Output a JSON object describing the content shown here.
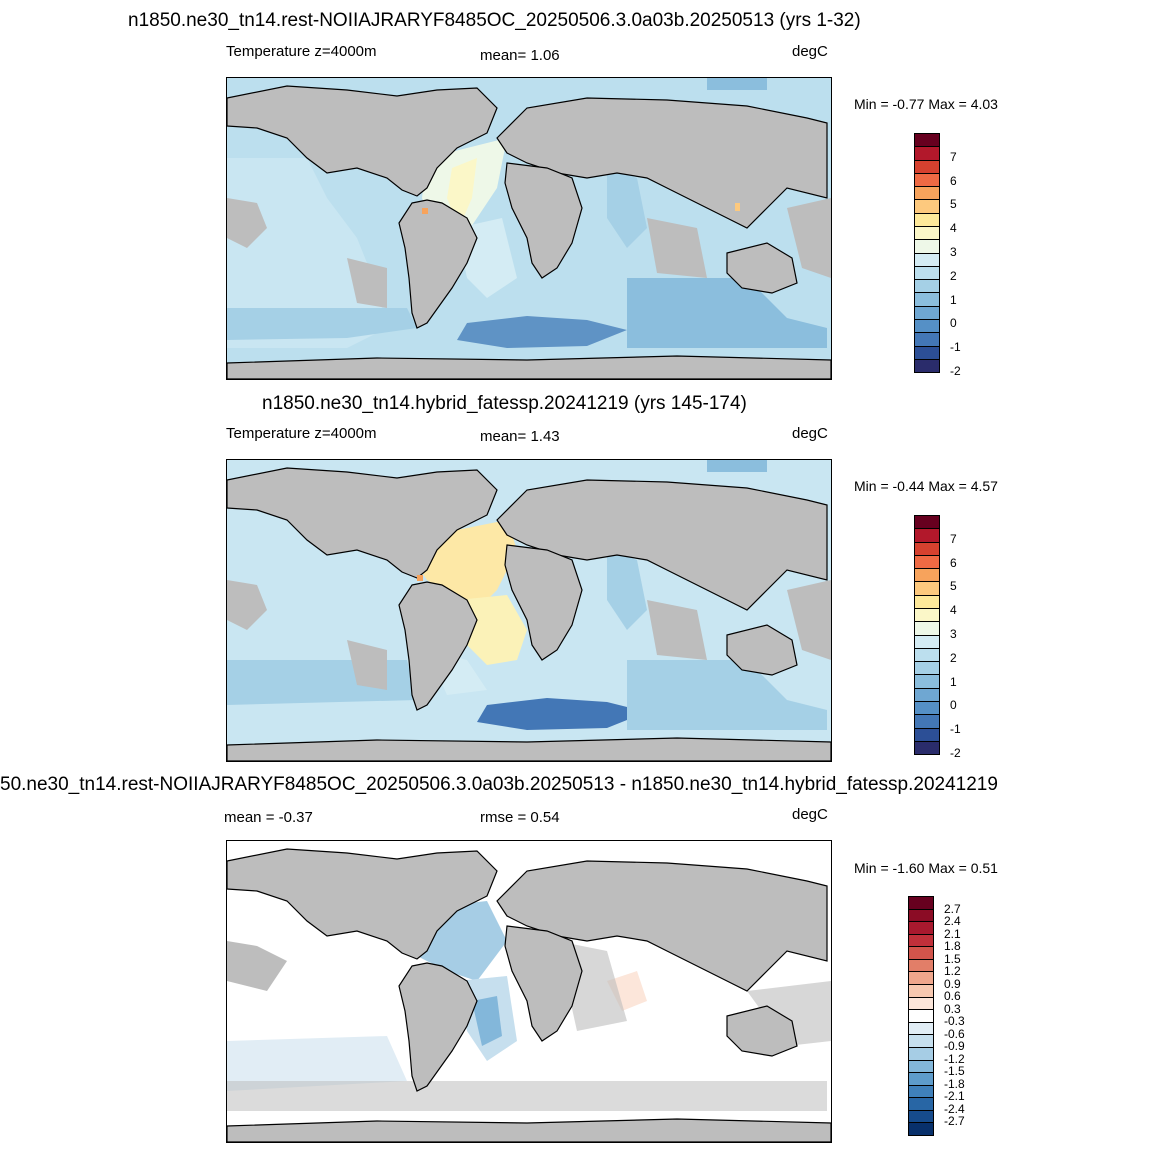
{
  "panels": [
    {
      "title": "n1850.ne30_tn14.rest-NOIIAJRARYF8485OC_20250506.3.0a03b.20250513 (yrs 1-32)",
      "left_label": "Temperature z=4000m",
      "center_label": "mean=   1.06",
      "right_label": "degC",
      "minmax": "Min =  -0.77 Max =   4.03"
    },
    {
      "title": "n1850.ne30_tn14.hybrid_fatessp.20241219 (yrs 145-174)",
      "left_label": "Temperature z=4000m",
      "center_label": "mean=   1.43",
      "right_label": "degC",
      "minmax": "Min =  -0.44 Max =   4.57"
    },
    {
      "title": "50.ne30_tn14.rest-NOIIAJRARYF8485OC_20250506.3.0a03b.20250513 - n1850.ne30_tn14.hybrid_fatessp.20241219",
      "left_label": "mean =  -0.37",
      "center_label": "rmse =   0.54",
      "right_label": "degC",
      "minmax": "Min =  -1.60 Max =   0.51"
    }
  ],
  "colorbar_abs": {
    "labels": [
      "7",
      "6",
      "5",
      "4",
      "3",
      "2",
      "1",
      "0",
      "-1",
      "-2"
    ],
    "colors": [
      "#67001f",
      "#b2182b",
      "#d6412f",
      "#ef6a44",
      "#f7a35c",
      "#fdc97e",
      "#fee99a",
      "#fbf7c8",
      "#eef8e8",
      "#d4ecf4",
      "#bcdfee",
      "#a5d0e6",
      "#8bbedd",
      "#6fa7d2",
      "#5590c6",
      "#4377b6",
      "#2c4f96",
      "#2a2c6b"
    ]
  },
  "colorbar_diff": {
    "labels": [
      "2.7",
      "2.4",
      "2.1",
      "1.8",
      "1.5",
      "1.2",
      "0.9",
      "0.6",
      "0.3",
      "-0.3",
      "-0.6",
      "-0.9",
      "-1.2",
      "-1.5",
      "-1.8",
      "-2.1",
      "-2.4",
      "-2.7"
    ],
    "colors": [
      "#67001f",
      "#8b0c25",
      "#a8192e",
      "#c0303a",
      "#d2544b",
      "#e27e68",
      "#efa68c",
      "#f7c8b0",
      "#fce6da",
      "#ffffff",
      "#e1edf5",
      "#c6dfee",
      "#a6cde5",
      "#83b7da",
      "#5e9ccb",
      "#3f80ba",
      "#2866a5",
      "#164b8c",
      "#08306b"
    ]
  },
  "land_color": "#bdbdbd"
}
